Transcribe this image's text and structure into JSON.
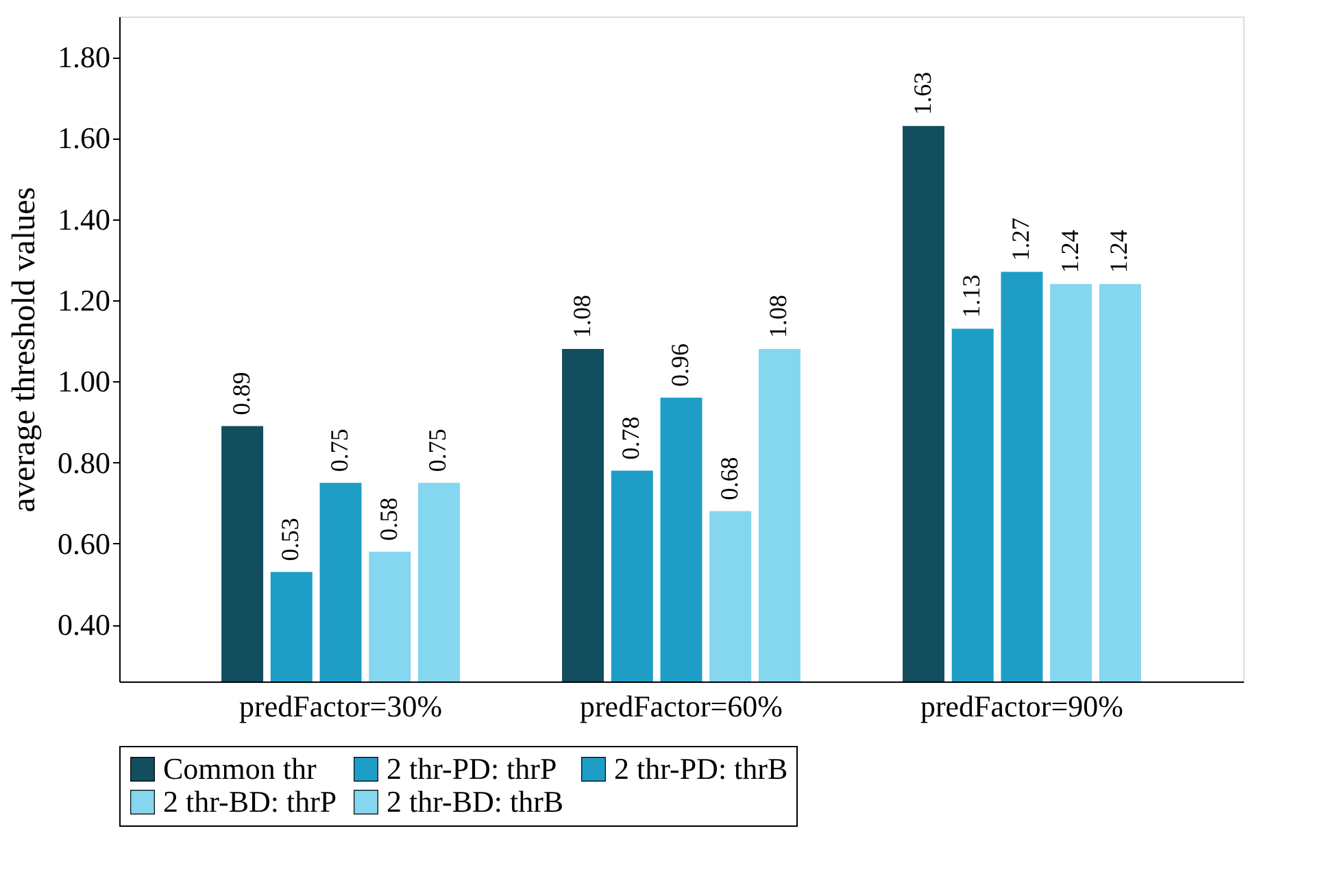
{
  "chart_data": {
    "type": "bar",
    "ylabel": "average threshold values",
    "categories": [
      "predFactor=30%",
      "predFactor=60%",
      "predFactor=90%"
    ],
    "series": [
      {
        "name": "Common thr",
        "color": "#124e5e",
        "values": [
          0.89,
          1.08,
          1.63
        ]
      },
      {
        "name": "2 thr-PD: thrP",
        "color": "#1e9ec6",
        "values": [
          0.53,
          0.78,
          1.13
        ]
      },
      {
        "name": "2 thr-PD: thrB",
        "color": "#1e9ec6",
        "values": [
          0.75,
          0.96,
          1.27
        ]
      },
      {
        "name": "2 thr-BD: thrP",
        "color": "#85d6ef",
        "values": [
          0.58,
          0.68,
          1.24
        ]
      },
      {
        "name": "2 thr-BD: thrB",
        "color": "#85d6ef",
        "values": [
          0.75,
          1.08,
          1.24
        ]
      }
    ],
    "ylim": [
      0.26,
      1.9
    ],
    "yticks": [
      {
        "value": 0.4,
        "label": "0.40"
      },
      {
        "value": 0.6,
        "label": "0.60"
      },
      {
        "value": 0.8,
        "label": "0.80"
      },
      {
        "value": 1.0,
        "label": "1.00"
      },
      {
        "value": 1.2,
        "label": "1.20"
      },
      {
        "value": 1.4,
        "label": "1.40"
      },
      {
        "value": 1.6,
        "label": "1.60"
      },
      {
        "value": 1.8,
        "label": "1.80"
      }
    ],
    "data_labels": true,
    "legend": "bottom",
    "grid": false
  }
}
